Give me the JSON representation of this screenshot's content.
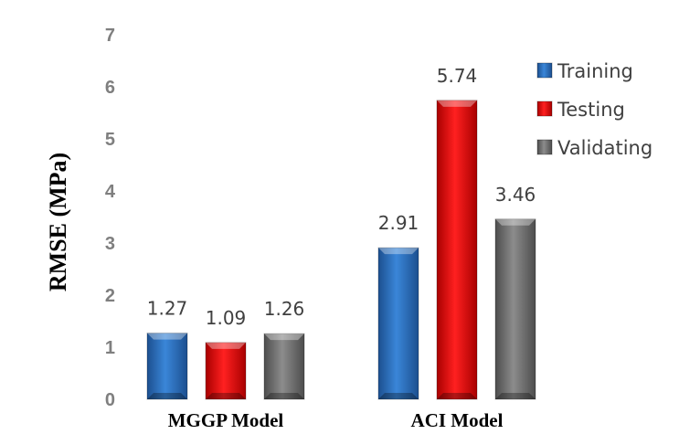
{
  "chart_data": {
    "type": "bar",
    "categories": [
      "MGGP Model",
      "ACI Model"
    ],
    "series": [
      {
        "name": "Training",
        "values": [
          1.27,
          2.91
        ]
      },
      {
        "name": "Testing",
        "values": [
          1.09,
          5.74
        ]
      },
      {
        "name": "Validating",
        "values": [
          1.26,
          3.46
        ]
      }
    ],
    "value_labels": [
      [
        "1.27",
        "2.91"
      ],
      [
        "1.09",
        "5.74"
      ],
      [
        "1.26",
        "3.46"
      ]
    ],
    "ylabel": "RMSE (MPa)",
    "ylim": [
      0,
      7
    ],
    "yticks": [
      "0",
      "1",
      "2",
      "3",
      "4",
      "5",
      "6",
      "7"
    ],
    "grid": false,
    "legend_position": "top-right",
    "colors": {
      "Training": "#2e75c8",
      "Testing": "#ee1111",
      "Validating": "#7f7f7f"
    }
  }
}
